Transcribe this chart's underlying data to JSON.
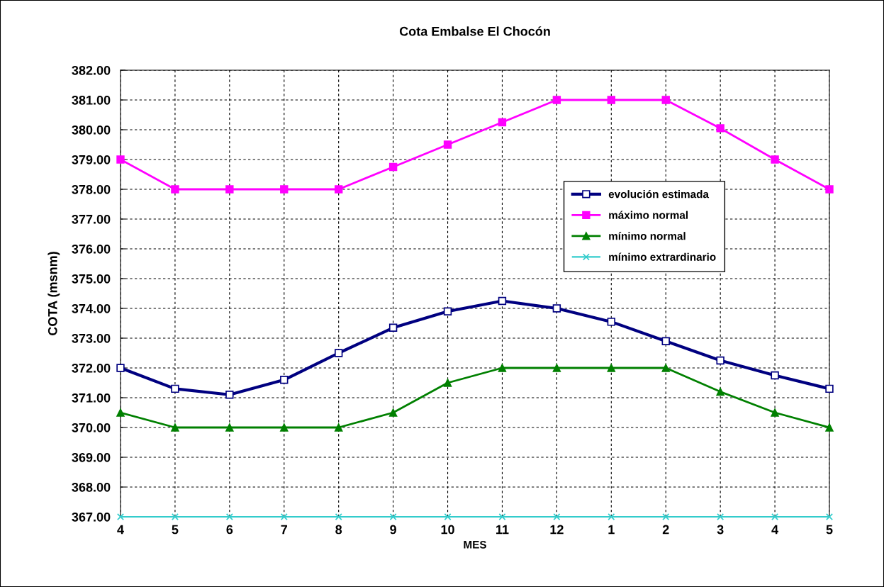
{
  "chart_data": {
    "type": "line",
    "title": "Cota Embalse El Chocón",
    "xlabel": "MES",
    "ylabel": "COTA (msnm)",
    "categories": [
      "4",
      "5",
      "6",
      "7",
      "8",
      "9",
      "10",
      "11",
      "12",
      "1",
      "2",
      "3",
      "4",
      "5"
    ],
    "series": [
      {
        "name": "evolución estimada",
        "color": "#000080",
        "marker": "square",
        "values": [
          372.0,
          371.3,
          371.1,
          371.6,
          372.5,
          373.35,
          373.9,
          374.25,
          374.0,
          373.55,
          372.9,
          372.25,
          371.75,
          371.3
        ]
      },
      {
        "name": "máximo normal",
        "color": "#ff00ff",
        "marker": "square",
        "values": [
          379.0,
          378.0,
          378.0,
          378.0,
          378.0,
          378.75,
          379.5,
          380.25,
          381.0,
          381.0,
          381.0,
          380.05,
          379.0,
          378.0
        ]
      },
      {
        "name": "mínimo normal",
        "color": "#008000",
        "marker": "triangle",
        "values": [
          370.5,
          370.0,
          370.0,
          370.0,
          370.0,
          370.5,
          371.5,
          372.0,
          372.0,
          372.0,
          372.0,
          371.2,
          370.5,
          370.0
        ]
      },
      {
        "name": "mínimo extrardinario",
        "color": "#33cccc",
        "marker": "cross",
        "values": [
          367.0,
          367.0,
          367.0,
          367.0,
          367.0,
          367.0,
          367.0,
          367.0,
          367.0,
          367.0,
          367.0,
          367.0,
          367.0,
          367.0
        ]
      }
    ],
    "ylim": [
      367,
      382
    ],
    "yticks": [
      {
        "value": 367,
        "label": "367.00"
      },
      {
        "value": 368,
        "label": "368.00"
      },
      {
        "value": 369,
        "label": "369.00"
      },
      {
        "value": 370,
        "label": "370.00"
      },
      {
        "value": 371,
        "label": "371.00"
      },
      {
        "value": 372,
        "label": "372.00"
      },
      {
        "value": 373,
        "label": "373.00"
      },
      {
        "value": 374,
        "label": "374.00"
      },
      {
        "value": 375,
        "label": "375.00"
      },
      {
        "value": 376,
        "label": "376.00"
      },
      {
        "value": 377,
        "label": "377.00"
      },
      {
        "value": 378,
        "label": "378.00"
      },
      {
        "value": 379,
        "label": "379.00"
      },
      {
        "value": 380,
        "label": "380.00"
      },
      {
        "value": 381,
        "label": "381.00"
      },
      {
        "value": 382,
        "label": "382.00"
      }
    ],
    "grid": true,
    "legend": "right",
    "line_style": "solid"
  }
}
